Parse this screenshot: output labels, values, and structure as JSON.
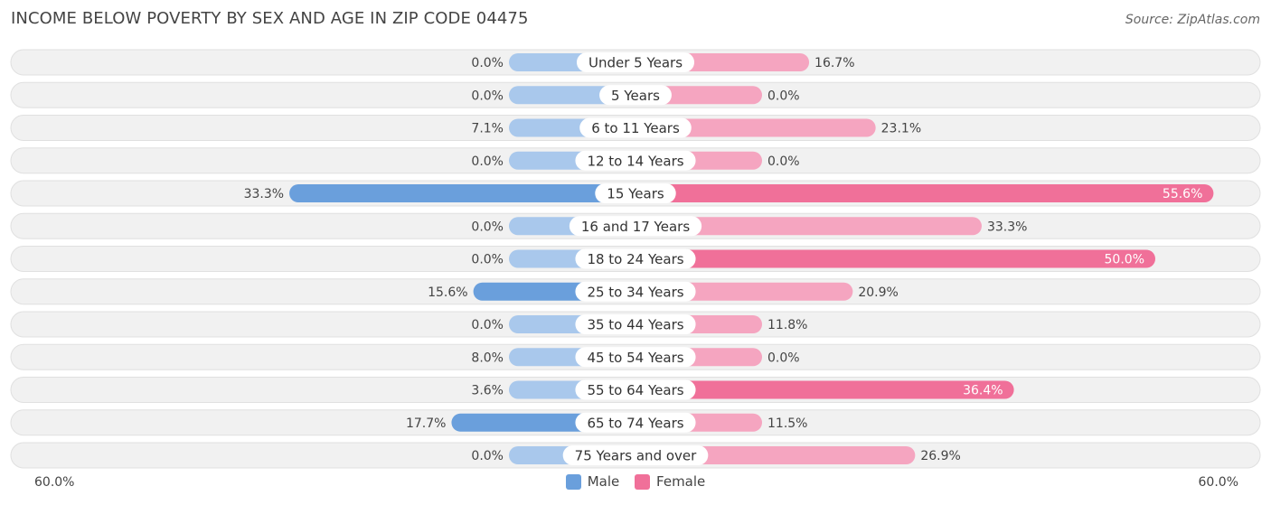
{
  "header": {
    "title": "INCOME BELOW POVERTY BY SEX AND AGE IN ZIP CODE 04475",
    "source": "Source: ZipAtlas.com"
  },
  "axis": {
    "left_label": "60.0%",
    "right_label": "60.0%"
  },
  "legend": {
    "male": "Male",
    "female": "Female"
  },
  "colors": {
    "male_strong": "#6a9fdc",
    "male_light": "#a9c8ec",
    "female_strong": "#f07099",
    "female_light": "#f5a5c0",
    "row_bg": "#f1f1f1"
  },
  "chart_data": {
    "type": "bar",
    "orientation": "diverging-horizontal",
    "title": "INCOME BELOW POVERTY BY SEX AND AGE IN ZIP CODE 04475",
    "xlim": [
      -60,
      60
    ],
    "categories": [
      "Under 5 Years",
      "5 Years",
      "6 to 11 Years",
      "12 to 14 Years",
      "15 Years",
      "16 and 17 Years",
      "18 to 24 Years",
      "25 to 34 Years",
      "35 to 44 Years",
      "45 to 54 Years",
      "55 to 64 Years",
      "65 to 74 Years",
      "75 Years and over"
    ],
    "series": [
      {
        "name": "Male",
        "values": [
          0.0,
          0.0,
          7.1,
          0.0,
          33.3,
          0.0,
          0.0,
          15.6,
          0.0,
          8.0,
          3.6,
          17.7,
          0.0
        ],
        "labels": [
          "0.0%",
          "0.0%",
          "7.1%",
          "0.0%",
          "33.3%",
          "0.0%",
          "0.0%",
          "15.6%",
          "0.0%",
          "8.0%",
          "3.6%",
          "17.7%",
          "0.0%"
        ]
      },
      {
        "name": "Female",
        "values": [
          16.7,
          0.0,
          23.1,
          0.0,
          55.6,
          33.3,
          50.0,
          20.9,
          11.8,
          0.0,
          36.4,
          11.5,
          26.9
        ],
        "labels": [
          "16.7%",
          "0.0%",
          "23.1%",
          "0.0%",
          "55.6%",
          "33.3%",
          "50.0%",
          "20.9%",
          "11.8%",
          "0.0%",
          "36.4%",
          "11.5%",
          "26.9%"
        ]
      }
    ],
    "legend_position": "bottom-center"
  }
}
